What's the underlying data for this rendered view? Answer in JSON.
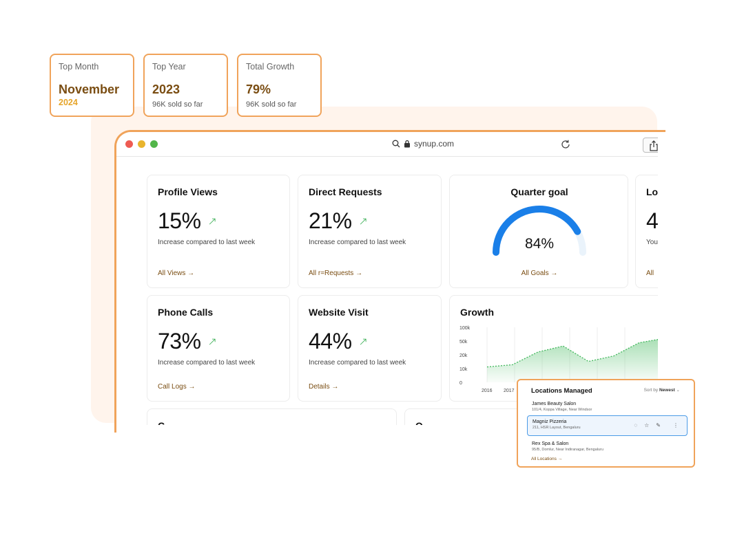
{
  "stats": [
    {
      "label": "Top Month",
      "value": "November",
      "sub": "2024"
    },
    {
      "label": "Top Year",
      "value": "2023",
      "sub": "96K sold so far"
    },
    {
      "label": "Total Growth",
      "value": "79%",
      "sub": "96K sold so far"
    }
  ],
  "browser": {
    "url": "synup.com"
  },
  "cards": {
    "profile_views": {
      "title": "Profile Views",
      "value": "15%",
      "desc": "Increase compared to last week",
      "link": "All Views →"
    },
    "direct_requests": {
      "title": "Direct Requests",
      "value": "21%",
      "desc": "Increase compared to last week",
      "link": "All r=Requests →"
    },
    "quarter_goal": {
      "title": "Quarter goal",
      "value": "84%",
      "fraction": 0.84,
      "link": "All Goals →"
    },
    "partial": {
      "title": "Lo",
      "value": "4",
      "desc": "You",
      "link": "All"
    },
    "phone_calls": {
      "title": "Phone Calls",
      "value": "73%",
      "desc": "Increase compared to last week",
      "link": "Call Logs →"
    },
    "website_visit": {
      "title": "Website Visit",
      "value": "44%",
      "desc": "Increase compared to last week",
      "link": "Details →"
    },
    "bottom_left": {
      "title": "C"
    },
    "bottom_right": {
      "title": "Q"
    }
  },
  "growth": {
    "title": "Growth",
    "y_ticks": [
      "100k",
      "50k",
      "20k",
      "10k",
      "0"
    ],
    "x_ticks": [
      "2016",
      "2017"
    ],
    "series": [
      0.28,
      0.32,
      0.55,
      0.66,
      0.38,
      0.48,
      0.72,
      0.8
    ]
  },
  "locations": {
    "title": "Locations Managed",
    "sort_label": "Sort by",
    "sort_value": "Newest",
    "items": [
      {
        "name": "James Beauty Salon",
        "address": "101/4, Koppa Village, Near Windsor"
      },
      {
        "name": "Magniz Pizzeria",
        "address": "211, HSR Layout, Bengaluru"
      },
      {
        "name": "Rex Spa & Salon",
        "address": "95/B, Domlur, Near Indiranagar, Bengaluru"
      }
    ],
    "all_link": "All Locations →"
  },
  "colors": {
    "accent_orange": "#f0a35a",
    "brown": "#7a4d12",
    "gold": "#e6a52a",
    "green": "#2eaa4a",
    "gauge_blue": "#1a7fe8"
  }
}
